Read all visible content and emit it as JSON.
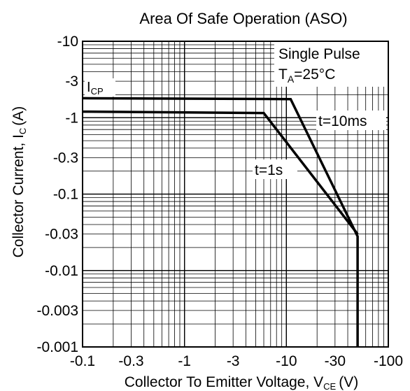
{
  "chart_data": {
    "type": "line",
    "title": "Area Of Safe Operation (ASO)",
    "xlabel": "Collector To Emitter Voltage, V",
    "xlabel_sub": "CE",
    "xlabel_unit": "(V)",
    "ylabel": "Collector Current, I",
    "ylabel_sub": "C",
    "ylabel_unit": "(A)",
    "x_scale": "log",
    "y_scale": "log",
    "xlim": [
      -0.1,
      -100
    ],
    "ylim": [
      -0.001,
      -10
    ],
    "grid": true,
    "x_ticks": [
      {
        "value": -0.1,
        "label": "-0.1"
      },
      {
        "value": -0.3,
        "label": "-0.3"
      },
      {
        "value": -1,
        "label": "-1"
      },
      {
        "value": -3,
        "label": "-3"
      },
      {
        "value": -10,
        "label": "-10"
      },
      {
        "value": -30,
        "label": "-30"
      },
      {
        "value": -100,
        "label": "-100"
      }
    ],
    "y_ticks": [
      {
        "value": -10,
        "label": "-10"
      },
      {
        "value": -3,
        "label": "-3"
      },
      {
        "value": -1,
        "label": "-1"
      },
      {
        "value": -0.3,
        "label": "-0.3"
      },
      {
        "value": -0.1,
        "label": "-0.1"
      },
      {
        "value": -0.03,
        "label": "-0.03"
      },
      {
        "value": -0.01,
        "label": "-0.01"
      },
      {
        "value": -0.003,
        "label": "-0.003"
      },
      {
        "value": -0.001,
        "label": "-0.001"
      }
    ],
    "series": [
      {
        "name": "t=10ms",
        "x": [
          -0.1,
          -11,
          -50,
          -50
        ],
        "y": [
          -1.8,
          -1.75,
          -0.028,
          -0.001
        ]
      },
      {
        "name": "t=1s",
        "x": [
          -0.1,
          -6,
          -50
        ],
        "y": [
          -1.2,
          -1.15,
          -0.03
        ]
      }
    ],
    "annotations": {
      "condition_line1": "Single Pulse",
      "condition_line2_main": "T",
      "condition_line2_sub": "A",
      "condition_line2_rest": "=25°C",
      "icp_main": "I",
      "icp_sub": "CP"
    }
  }
}
